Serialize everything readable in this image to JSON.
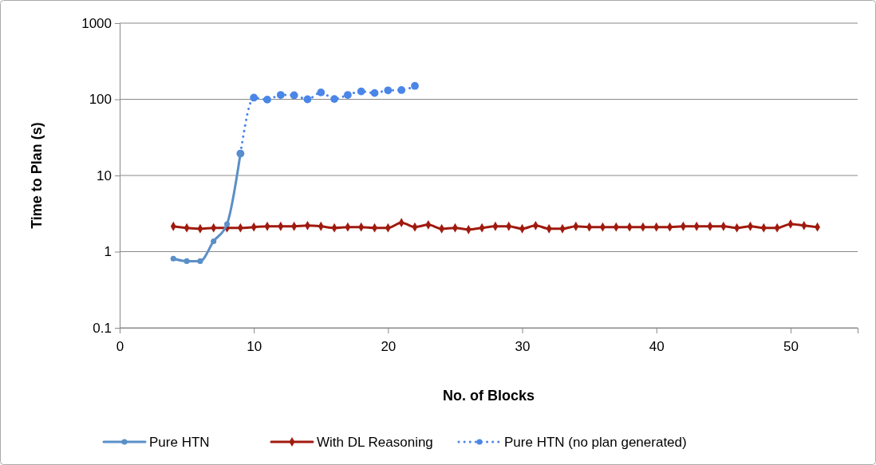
{
  "chart_data": {
    "type": "line",
    "xlabel": "No. of Blocks",
    "ylabel": "Time to Plan (s)",
    "x": [
      4,
      5,
      6,
      7,
      8,
      9,
      10,
      11,
      12,
      13,
      14,
      15,
      16,
      17,
      18,
      19,
      20,
      21,
      22,
      23,
      24,
      25,
      26,
      27,
      28,
      29,
      30,
      31,
      32,
      33,
      34,
      35,
      36,
      37,
      38,
      39,
      40,
      41,
      42,
      43,
      44,
      45,
      46,
      47,
      48,
      49,
      50,
      51,
      52
    ],
    "xlim": [
      0,
      55
    ],
    "xticks": [
      0,
      10,
      20,
      30,
      40,
      50
    ],
    "ylim": [
      0.1,
      1000
    ],
    "yticks": [
      0.1,
      1,
      10,
      100,
      1000
    ],
    "log": "y",
    "grid": "y",
    "legend": "bottom",
    "series": [
      {
        "name": "Pure HTN",
        "color": "#5b8fc7",
        "marker": "circle",
        "line_style": "solid",
        "x": [
          4,
          5,
          6,
          7,
          8,
          9
        ],
        "values": [
          0.81,
          0.75,
          0.75,
          1.37,
          2.3,
          19.4
        ]
      },
      {
        "name": "With DL Reasoning",
        "color": "#a01a0e",
        "marker": "diamond",
        "line_style": "solid",
        "values": [
          2.15,
          2.05,
          2.0,
          2.05,
          2.05,
          2.05,
          2.1,
          2.15,
          2.15,
          2.15,
          2.2,
          2.15,
          2.05,
          2.1,
          2.1,
          2.05,
          2.05,
          2.4,
          2.1,
          2.25,
          2.0,
          2.05,
          1.95,
          2.05,
          2.15,
          2.15,
          2.0,
          2.2,
          2.0,
          2.0,
          2.15,
          2.1,
          2.1,
          2.1,
          2.1,
          2.1,
          2.1,
          2.1,
          2.15,
          2.15,
          2.15,
          2.15,
          2.05,
          2.15,
          2.05,
          2.05,
          2.3,
          2.2,
          2.1
        ]
      },
      {
        "name": "Pure HTN (no plan generated)",
        "color": "#4a86e8",
        "marker": "circle",
        "line_style": "dotted",
        "x": [
          9,
          10,
          11,
          12,
          13,
          14,
          15,
          16,
          17,
          18,
          19,
          20,
          21,
          22
        ],
        "values": [
          19.4,
          105,
          99,
          114,
          113,
          100,
          123,
          101,
          114,
          127,
          121,
          131,
          132,
          150
        ]
      }
    ]
  }
}
